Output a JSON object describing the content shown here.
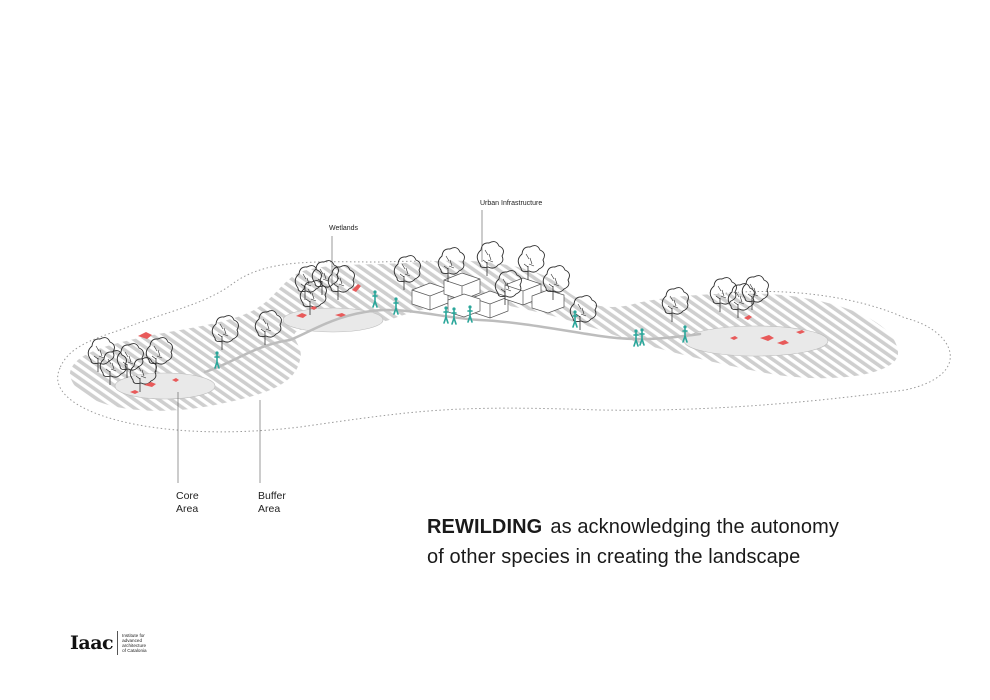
{
  "labels": {
    "wetlands": "Wetlands",
    "urban_infrastructure": "Urban Infrastructure",
    "core_area": [
      "Core",
      "Area"
    ],
    "buffer_area": [
      "Buffer",
      "Area"
    ]
  },
  "title": {
    "bold": "REWILDING",
    "line1": "as acknowledging the autonomy",
    "line2": "of other species in creating the landscape"
  },
  "logo": {
    "mark": "Iaac",
    "text": [
      "Institute for",
      "advanced",
      "architecture",
      "of Catalonia"
    ]
  },
  "colors": {
    "hatch": "#cfcfcf",
    "core": "#e9e9e9",
    "animals": "#e85a5a",
    "people": "#2aa69a",
    "trees": "#2b2b2b",
    "outline": "#9a9a9a"
  }
}
